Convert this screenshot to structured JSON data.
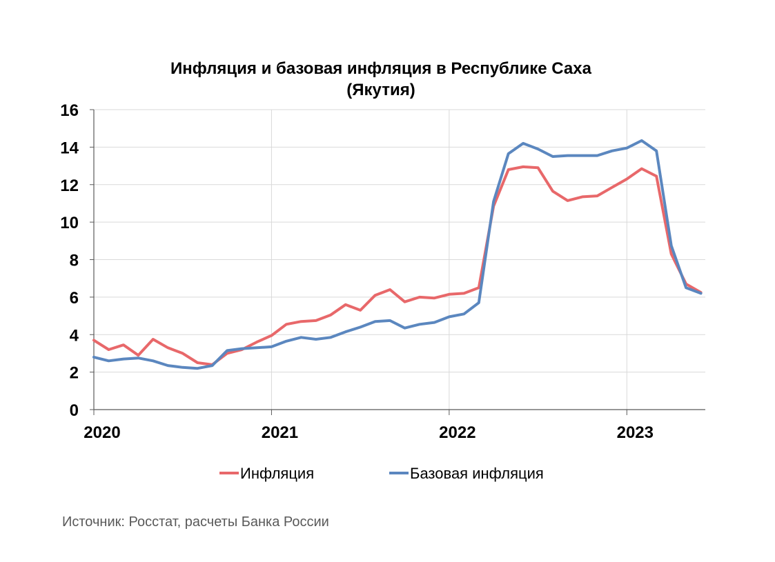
{
  "chart_data": {
    "type": "line",
    "title": "Инфляция и базовая инфляция в Республике Саха",
    "subtitle": "(Якутия)",
    "xlabel": "",
    "ylabel": "",
    "ylim": [
      0,
      16
    ],
    "yticks": [
      "0",
      "2",
      "4",
      "6",
      "8",
      "10",
      "12",
      "14",
      "16"
    ],
    "xticks": [
      "2020",
      "2021",
      "2022",
      "2023"
    ],
    "x_start": "2020-01",
    "x_end": "2023-05",
    "grid": true,
    "legend_position": "bottom",
    "series": [
      {
        "name": "Инфляция",
        "color": "#E8686A",
        "values": [
          3.7,
          3.2,
          3.45,
          2.9,
          3.75,
          3.3,
          3.0,
          2.5,
          2.4,
          3.0,
          3.2,
          3.6,
          3.95,
          4.55,
          4.7,
          4.75,
          5.05,
          5.6,
          5.3,
          6.1,
          6.4,
          5.75,
          6.0,
          5.95,
          6.15,
          6.2,
          6.5,
          10.85,
          12.8,
          12.95,
          12.9,
          11.65,
          11.15,
          11.35,
          11.4,
          11.85,
          12.3,
          12.85,
          12.45,
          8.3,
          6.7,
          6.25
        ]
      },
      {
        "name": "Базовая инфляция",
        "color": "#5B87BF",
        "values": [
          2.8,
          2.6,
          2.7,
          2.75,
          2.6,
          2.35,
          2.25,
          2.2,
          2.35,
          3.15,
          3.25,
          3.3,
          3.35,
          3.65,
          3.85,
          3.75,
          3.85,
          4.15,
          4.4,
          4.7,
          4.75,
          4.35,
          4.55,
          4.65,
          4.95,
          5.1,
          5.7,
          11.1,
          13.65,
          14.2,
          13.9,
          13.5,
          13.55,
          13.55,
          13.55,
          13.8,
          13.95,
          14.35,
          13.8,
          8.75,
          6.5,
          6.2
        ]
      }
    ]
  },
  "source": "Источник: Росстат, расчеты Банка России"
}
